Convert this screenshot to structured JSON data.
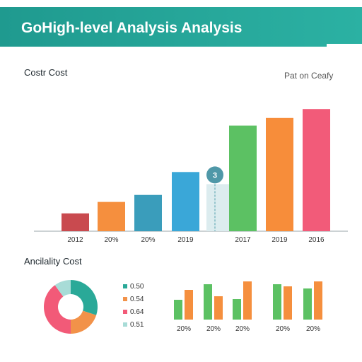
{
  "header": {
    "title": "GoHigh-level Analysis Analysis",
    "color": "#1f9a8f"
  },
  "chart_data": [
    {
      "type": "bar",
      "title": "Costr Cost",
      "legend_note": "Pat on Ceafy",
      "categories": [
        "2012",
        "20%",
        "20%",
        "2019",
        "",
        "2017",
        "2019",
        "2016"
      ],
      "values": [
        28,
        46,
        57,
        93,
        74,
        166,
        178,
        192
      ],
      "colors": [
        "#c94a4f",
        "#f58f3e",
        "#3a9dbb",
        "#3aa7d8",
        "#dcecef",
        "#5cc163",
        "#f78d3a",
        "#f25b79"
      ],
      "annotation": {
        "category_index": 4,
        "label": "3"
      },
      "ylim": [
        0,
        200
      ]
    },
    {
      "type": "pie",
      "title": "Ancilality Cost",
      "slices": [
        {
          "label": "0.50",
          "value": 0.3,
          "color": "#2aa998"
        },
        {
          "label": "0.54",
          "value": 0.2,
          "color": "#f29249"
        },
        {
          "label": "0.64",
          "value": 0.4,
          "color": "#f25a78"
        },
        {
          "label": "0.51",
          "value": 0.1,
          "color": "#a8dcd7"
        }
      ]
    },
    {
      "type": "bar",
      "categories": [
        "20%",
        "20%",
        "20%",
        "20%",
        "20%"
      ],
      "series": [
        {
          "values": [
            28,
            50,
            29,
            50,
            44
          ],
          "color": "#5cc163"
        },
        {
          "values": [
            42,
            33,
            54,
            47,
            54
          ],
          "color": "#f58f3e"
        }
      ],
      "ylim": [
        0,
        60
      ]
    }
  ]
}
